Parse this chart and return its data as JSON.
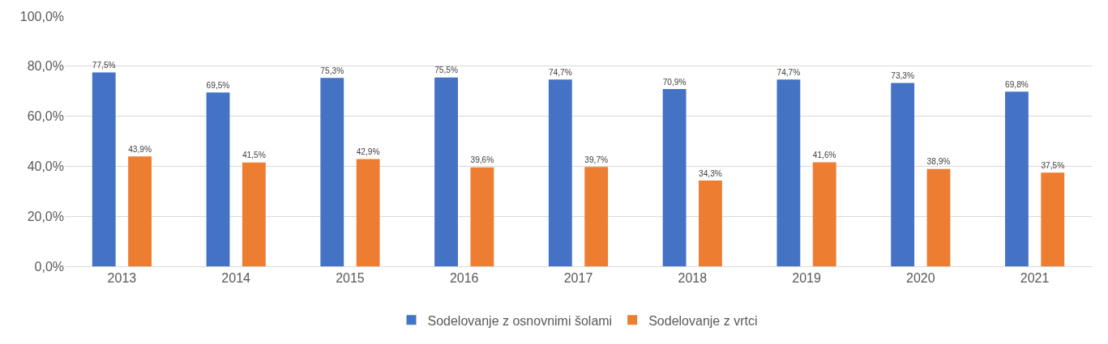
{
  "chart_data": {
    "type": "bar",
    "categories": [
      "2013",
      "2014",
      "2015",
      "2016",
      "2017",
      "2018",
      "2019",
      "2020",
      "2021"
    ],
    "series": [
      {
        "name": "Sodelovanje z osnovnimi šolami",
        "color": "#4472c4",
        "values": [
          77.5,
          69.5,
          75.3,
          75.5,
          74.7,
          70.9,
          74.7,
          73.3,
          69.8
        ],
        "value_labels": [
          "77,5%",
          "69,5%",
          "75,3%",
          "75,5%",
          "74,7%",
          "70,9%",
          "74,7%",
          "73,3%",
          "69,8%"
        ]
      },
      {
        "name": "Sodelovanje z vrtci",
        "color": "#ed7d31",
        "values": [
          43.9,
          41.5,
          42.9,
          39.6,
          39.7,
          34.3,
          41.6,
          38.9,
          37.5
        ],
        "value_labels": [
          "43,9%",
          "41,5%",
          "42,9%",
          "39,6%",
          "39,7%",
          "34,3%",
          "41,6%",
          "38,9%",
          "37,5%"
        ]
      }
    ],
    "ylim": [
      0,
      100
    ],
    "yticks": [
      {
        "value": 0,
        "label": "0,0%"
      },
      {
        "value": 20,
        "label": "20,0%"
      },
      {
        "value": 40,
        "label": "40,0%"
      },
      {
        "value": 60,
        "label": "60,0%"
      },
      {
        "value": 80,
        "label": "80,0%"
      },
      {
        "value": 100,
        "label": "100,0%"
      }
    ],
    "grid": "y",
    "legend": "bottom"
  }
}
